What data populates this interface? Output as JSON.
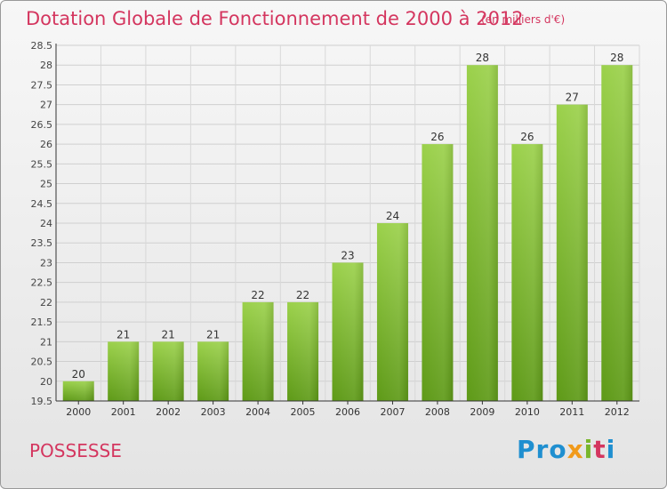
{
  "header": {
    "title": "Dotation Globale de Fonctionnement de 2000 à 2012",
    "unit": "(en milliers d'€)"
  },
  "footer": {
    "commune": "POSSESSE",
    "logo_text": "Proxiti"
  },
  "chart_data": {
    "type": "bar",
    "title": "Dotation Globale de Fonctionnement de 2000 à 2012",
    "subtitle": "(en milliers d'€)",
    "xlabel": "",
    "ylabel": "",
    "ylim": [
      19.5,
      28.5
    ],
    "yticks": [
      19.5,
      20,
      20.5,
      21,
      21.5,
      22,
      22.5,
      23,
      23.5,
      24,
      24.5,
      25,
      25.5,
      26,
      26.5,
      27,
      27.5,
      28,
      28.5
    ],
    "categories": [
      "2000",
      "2001",
      "2002",
      "2003",
      "2004",
      "2005",
      "2006",
      "2007",
      "2008",
      "2009",
      "2010",
      "2011",
      "2012"
    ],
    "values": [
      20,
      21,
      21,
      21,
      22,
      22,
      23,
      24,
      26,
      28,
      26,
      27,
      28
    ],
    "grid": true,
    "colors": {
      "bar_top": "#9bd14b",
      "bar_bottom": "#5e9a17",
      "text": "#d4365f"
    }
  }
}
